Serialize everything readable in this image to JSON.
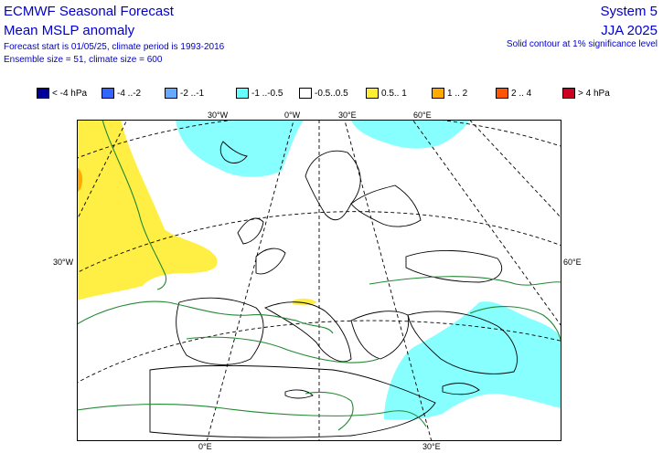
{
  "header": {
    "title": "ECMWF Seasonal Forecast",
    "subtitle": "Mean MSLP anomaly",
    "forecast_info": "Forecast start is 01/05/25, climate period is 1993-2016",
    "ensemble_info": "Ensemble size = 51, climate size = 600",
    "system": "System 5",
    "season": "JJA 2025",
    "significance_note": "Solid contour at 1% significance level"
  },
  "legend": [
    {
      "label": "< -4 hPa",
      "color": "#000099"
    },
    {
      "label": "-4 ..-2",
      "color": "#3366ff"
    },
    {
      "label": "-2 ..-1",
      "color": "#66aaff"
    },
    {
      "label": "-1 ..-0.5",
      "color": "#66ffff"
    },
    {
      "label": "-0.5..0.5",
      "color": "#ffffff"
    },
    {
      "label": "0.5.. 1",
      "color": "#ffee33"
    },
    {
      "label": "1 .. 2",
      "color": "#ffaa00"
    },
    {
      "label": "2 .. 4",
      "color": "#ff5500"
    },
    {
      "label": "> 4 hPa",
      "color": "#cc0022"
    }
  ],
  "axis_labels": {
    "top": [
      "30°W",
      "0°W",
      "30°E",
      "60°E"
    ],
    "left": "30°W",
    "right": "60°E",
    "bottom": [
      "0°E",
      "30°E"
    ]
  },
  "colors": {
    "positive_anomaly": "#ffee44",
    "positive_strong": "#ffaa00",
    "negative_anomaly": "#88ffff",
    "significance_contour": "#228833",
    "graticule": "#000000"
  }
}
